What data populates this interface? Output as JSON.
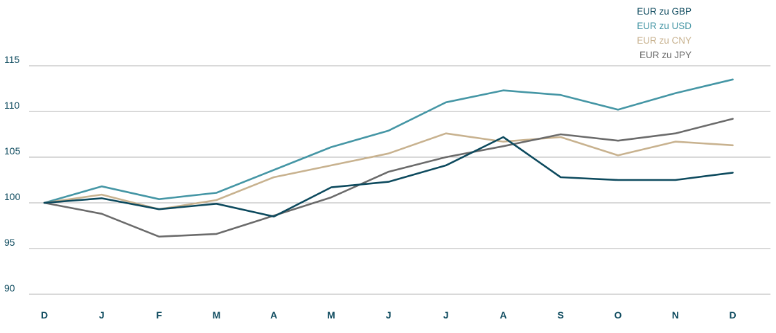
{
  "chart_data": {
    "type": "line",
    "categories": [
      "D",
      "J",
      "F",
      "M",
      "A",
      "M",
      "J",
      "J",
      "A",
      "S",
      "O",
      "N",
      "D"
    ],
    "ylim": [
      90,
      115
    ],
    "yticks": [
      90,
      95,
      100,
      105,
      110,
      115
    ],
    "grid": true,
    "legend_position": "top-right",
    "axis_color": "#0d4a5e",
    "grid_color": "#b3b3b3",
    "series": [
      {
        "name": "EUR zu GBP",
        "color": "#0d4a5e",
        "values": [
          100.0,
          100.5,
          99.3,
          99.9,
          98.5,
          101.7,
          102.3,
          104.1,
          107.2,
          102.8,
          102.5,
          102.5,
          103.3
        ]
      },
      {
        "name": "EUR zu USD",
        "color": "#4596a5",
        "values": [
          100.0,
          101.8,
          100.4,
          101.1,
          103.6,
          106.1,
          107.9,
          111.0,
          112.3,
          111.8,
          110.2,
          112.0,
          113.5
        ]
      },
      {
        "name": "EUR zu CNY",
        "color": "#c8b28f",
        "values": [
          100.0,
          100.9,
          99.3,
          100.3,
          102.8,
          104.1,
          105.4,
          107.6,
          106.7,
          107.2,
          105.2,
          106.7,
          106.3
        ]
      },
      {
        "name": "EUR zu JPY",
        "color": "#6b6b6b",
        "values": [
          100.0,
          98.8,
          96.3,
          96.6,
          98.6,
          100.6,
          103.4,
          105.0,
          106.2,
          107.5,
          106.8,
          107.6,
          109.2
        ]
      }
    ]
  }
}
